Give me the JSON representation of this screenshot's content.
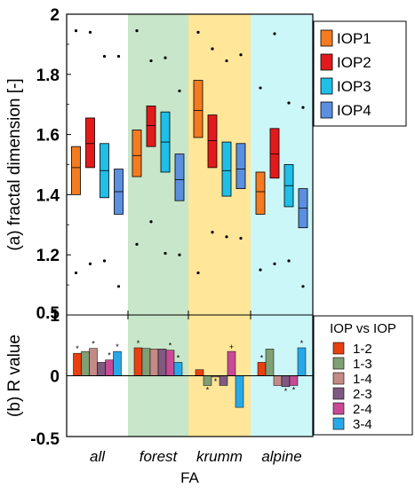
{
  "chart_data": [
    {
      "type": "box",
      "panel": "(a)",
      "ylabel": "(a) fractal dimension [-]",
      "ylim": [
        1.0,
        2.0
      ],
      "yticks": [
        "1",
        "1.2",
        "1.4",
        "1.6",
        "1.8",
        "2"
      ],
      "categories": [
        "all",
        "forest",
        "krumm",
        "alpine"
      ],
      "category_colors": [
        "#ffffff",
        "#c8e6c9",
        "#ffe699",
        "#ccf7f9"
      ],
      "legend": {
        "position": "top-right",
        "entries": [
          {
            "name": "IOP1",
            "color": "#f47b20"
          },
          {
            "name": "IOP2",
            "color": "#e31a1c"
          },
          {
            "name": "IOP3",
            "color": "#1fbfe8"
          },
          {
            "name": "IOP4",
            "color": "#5b8fe0"
          }
        ]
      },
      "series": [
        {
          "name": "IOP1",
          "color": "#f47b20",
          "boxes": [
            {
              "q1": 1.4,
              "median": 1.49,
              "q3": 1.56,
              "outliers": [
                1.945,
                1.14
              ]
            },
            {
              "q1": 1.46,
              "median": 1.53,
              "q3": 1.615,
              "outliers": [
                1.945,
                1.235
              ]
            },
            {
              "q1": 1.59,
              "median": 1.68,
              "q3": 1.78,
              "outliers": [
                1.94,
                1.14
              ]
            },
            {
              "q1": 1.335,
              "median": 1.41,
              "q3": 1.475,
              "outliers": [
                1.755,
                1.15
              ]
            }
          ]
        },
        {
          "name": "IOP2",
          "color": "#e31a1c",
          "boxes": [
            {
              "q1": 1.49,
              "median": 1.57,
              "q3": 1.655,
              "outliers": [
                1.94,
                1.17
              ]
            },
            {
              "q1": 1.56,
              "median": 1.63,
              "q3": 1.695,
              "outliers": [
                1.845,
                1.31
              ]
            },
            {
              "q1": 1.49,
              "median": 1.58,
              "q3": 1.665,
              "outliers": [
                1.885,
                1.275
              ]
            },
            {
              "q1": 1.455,
              "median": 1.535,
              "q3": 1.62,
              "outliers": [
                1.935,
                1.17
              ]
            }
          ]
        },
        {
          "name": "IOP3",
          "color": "#1fbfe8",
          "boxes": [
            {
              "q1": 1.39,
              "median": 1.48,
              "q3": 1.57,
              "outliers": [
                1.86,
                1.18
              ]
            },
            {
              "q1": 1.475,
              "median": 1.575,
              "q3": 1.675,
              "outliers": [
                1.855,
                1.205
              ]
            },
            {
              "q1": 1.395,
              "median": 1.48,
              "q3": 1.575,
              "outliers": [
                1.845,
                1.26
              ]
            },
            {
              "q1": 1.36,
              "median": 1.43,
              "q3": 1.5,
              "outliers": [
                1.705,
                1.18
              ]
            }
          ]
        },
        {
          "name": "IOP4",
          "color": "#5b8fe0",
          "boxes": [
            {
              "q1": 1.335,
              "median": 1.41,
              "q3": 1.485,
              "outliers": [
                1.86,
                1.095
              ]
            },
            {
              "q1": 1.38,
              "median": 1.45,
              "q3": 1.535,
              "outliers": [
                1.745,
                1.2
              ]
            },
            {
              "q1": 1.42,
              "median": 1.485,
              "q3": 1.57,
              "outliers": [
                1.865,
                1.255
              ]
            },
            {
              "q1": 1.29,
              "median": 1.355,
              "q3": 1.42,
              "outliers": [
                1.69,
                1.095
              ]
            }
          ]
        }
      ]
    },
    {
      "type": "bar",
      "panel": "(b)",
      "ylabel": "(b) R value",
      "xlabel": "FA",
      "ylim": [
        -0.5,
        0.5
      ],
      "yticks": [
        "-0.5",
        "0",
        "0.5"
      ],
      "categories": [
        "all",
        "forest",
        "krumm",
        "alpine"
      ],
      "legend": {
        "position": "top-right",
        "title": "IOP vs IOP",
        "entries": [
          {
            "name": "1-2",
            "color": "#e8400f"
          },
          {
            "name": "1-3",
            "color": "#7f9f74"
          },
          {
            "name": "1-4",
            "color": "#c48a85"
          },
          {
            "name": "2-3",
            "color": "#7e5a80"
          },
          {
            "name": "2-4",
            "color": "#c84a95"
          },
          {
            "name": "3-4",
            "color": "#29a8e8"
          }
        ]
      },
      "series": [
        {
          "name": "1-2",
          "color": "#e8400f",
          "values": [
            0.185,
            0.23,
            0.05,
            0.11
          ],
          "marks": [
            "*",
            "*",
            "",
            "*"
          ]
        },
        {
          "name": "1-3",
          "color": "#7f9f74",
          "values": [
            0.2,
            0.225,
            -0.08,
            0.22
          ],
          "marks": [
            "",
            "",
            "*",
            ""
          ]
        },
        {
          "name": "1-4",
          "color": "#c48a85",
          "values": [
            0.225,
            0.22,
            -0.01,
            -0.08
          ],
          "marks": [
            "*",
            "",
            "*",
            ""
          ]
        },
        {
          "name": "2-3",
          "color": "#7e5a80",
          "values": [
            0.11,
            0.22,
            -0.08,
            -0.09
          ],
          "marks": [
            "",
            "",
            "",
            "*"
          ]
        },
        {
          "name": "2-4",
          "color": "#c84a95",
          "values": [
            0.13,
            0.21,
            0.2,
            -0.08
          ],
          "marks": [
            "*",
            "*",
            "+",
            "*"
          ]
        },
        {
          "name": "3-4",
          "color": "#29a8e8",
          "values": [
            0.2,
            0.11,
            -0.26,
            0.23
          ],
          "marks": [
            "*",
            "*",
            "",
            "*"
          ]
        }
      ]
    }
  ]
}
